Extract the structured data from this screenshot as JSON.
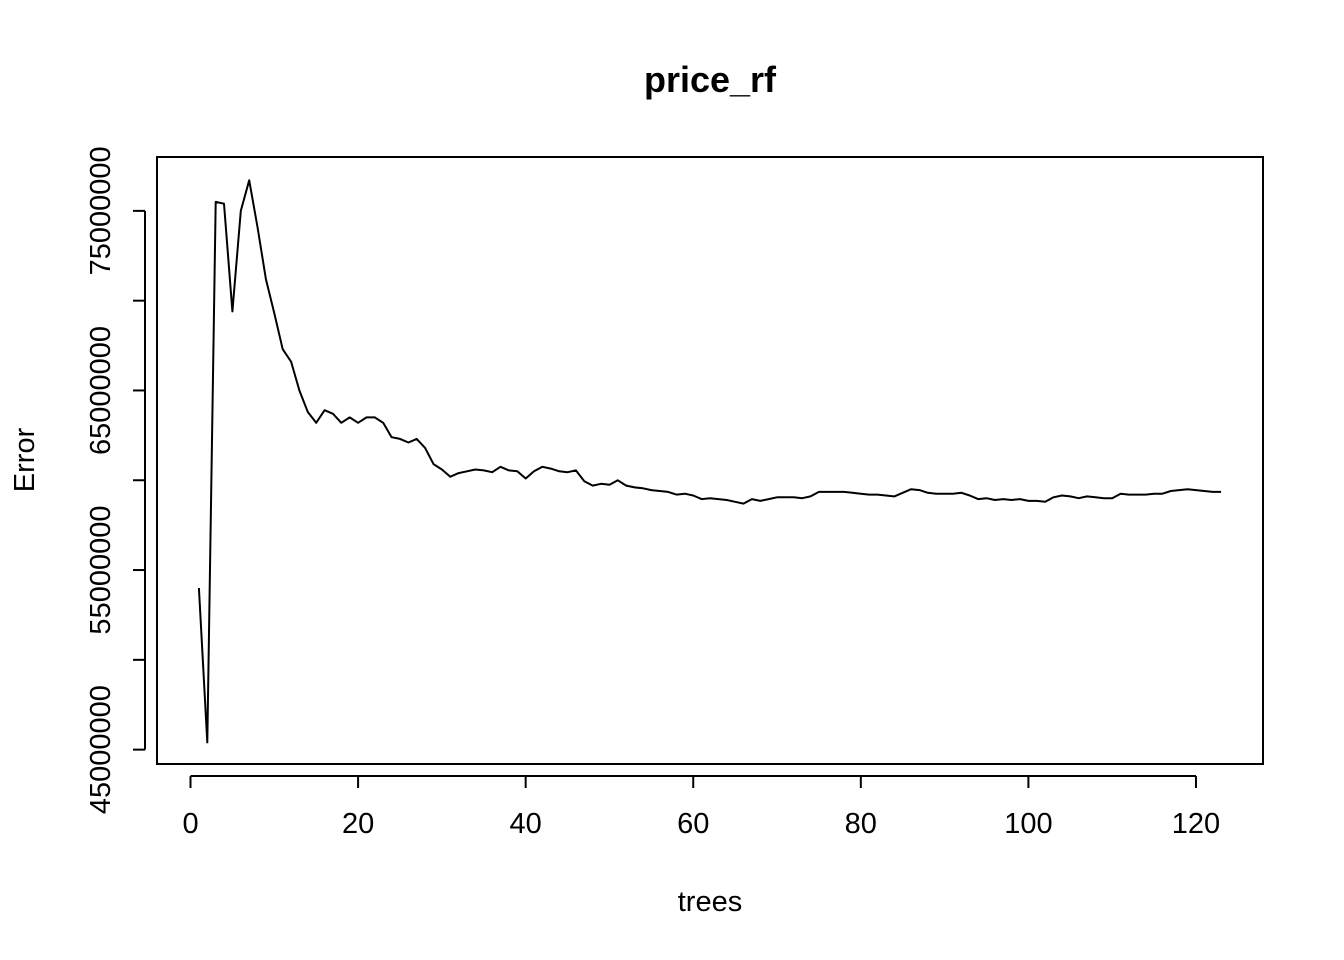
{
  "chart_data": {
    "type": "line",
    "title": "price_rf",
    "xlabel": "trees",
    "ylabel": "Error",
    "xlim": [
      -4,
      128
    ],
    "ylim": [
      44200000,
      78000000
    ],
    "xticks": [
      0,
      20,
      40,
      60,
      80,
      100,
      120
    ],
    "xtick_labels": [
      "0",
      "20",
      "40",
      "60",
      "80",
      "100",
      "120"
    ],
    "yticks": [
      45000000,
      50000000,
      55000000,
      60000000,
      65000000,
      70000000,
      75000000
    ],
    "ytick_labels": [
      "45000000",
      "",
      "55000000",
      "",
      "65000000",
      "",
      "75000000"
    ],
    "grid": false,
    "series": [
      {
        "x": [
          1,
          2,
          3,
          4,
          5,
          6,
          7,
          8,
          9,
          10,
          11,
          12,
          13,
          14,
          15,
          16,
          17,
          18,
          19,
          20,
          21,
          22,
          23,
          24,
          25,
          26,
          27,
          28,
          29,
          30,
          31,
          32,
          33,
          34,
          35,
          36,
          37,
          38,
          39,
          40,
          41,
          42,
          43,
          44,
          45,
          46,
          47,
          48,
          49,
          50,
          51,
          52,
          53,
          54,
          55,
          56,
          57,
          58,
          59,
          60,
          61,
          62,
          63,
          64,
          65,
          66,
          67,
          68,
          69,
          70,
          71,
          72,
          73,
          74,
          75,
          76,
          77,
          78,
          79,
          80,
          81,
          82,
          83,
          84,
          85,
          86,
          87,
          88,
          89,
          90,
          91,
          92,
          93,
          94,
          95,
          96,
          97,
          98,
          99,
          100,
          101,
          102,
          103,
          104,
          105,
          106,
          107,
          108,
          109,
          110,
          111,
          112,
          113,
          114,
          115,
          116,
          117,
          118,
          119,
          120,
          121,
          122,
          123
        ],
        "y": [
          54000000,
          45400000,
          75500000,
          75400000,
          69400000,
          75000000,
          76700000,
          74100000,
          71200000,
          69300000,
          67300000,
          66600000,
          65000000,
          63800000,
          63200000,
          63900000,
          63700000,
          63200000,
          63500000,
          63200000,
          63500000,
          63500000,
          63200000,
          62400000,
          62300000,
          62100000,
          62300000,
          61800000,
          60900000,
          60600000,
          60200000,
          60400000,
          60500000,
          60600000,
          60550000,
          60450000,
          60750000,
          60550000,
          60500000,
          60100000,
          60500000,
          60750000,
          60650000,
          60500000,
          60450000,
          60550000,
          59950000,
          59700000,
          59800000,
          59750000,
          60000000,
          59700000,
          59600000,
          59550000,
          59450000,
          59400000,
          59350000,
          59200000,
          59250000,
          59150000,
          58950000,
          59000000,
          58950000,
          58900000,
          58800000,
          58700000,
          58950000,
          58850000,
          58950000,
          59050000,
          59050000,
          59050000,
          59000000,
          59100000,
          59350000,
          59350000,
          59350000,
          59350000,
          59300000,
          59250000,
          59200000,
          59200000,
          59150000,
          59100000,
          59300000,
          59500000,
          59450000,
          59300000,
          59250000,
          59250000,
          59250000,
          59300000,
          59150000,
          58950000,
          59000000,
          58900000,
          58950000,
          58900000,
          58950000,
          58850000,
          58850000,
          58800000,
          59050000,
          59150000,
          59100000,
          59000000,
          59100000,
          59050000,
          59000000,
          59000000,
          59250000,
          59200000,
          59200000,
          59200000,
          59250000,
          59250000,
          59400000,
          59450000,
          59500000,
          59450000,
          59400000,
          59350000,
          59350000
        ]
      }
    ]
  }
}
